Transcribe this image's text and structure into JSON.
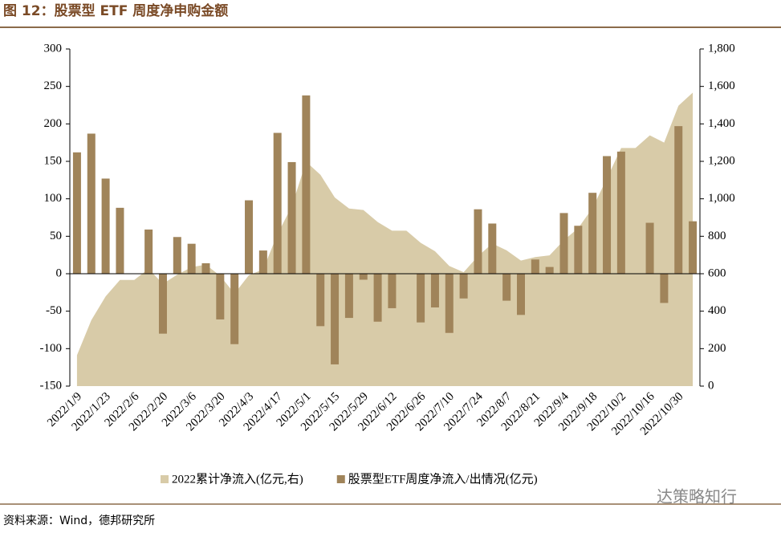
{
  "chart_data": {
    "type": "bar+area",
    "title": "图 12：股票型 ETF 周度净申购金额",
    "source": "资料来源：Wind，德邦研究所",
    "watermark": "达策略知行",
    "categories": [
      "2022/1/9",
      null,
      "2022/1/23",
      null,
      "2022/2/6",
      null,
      "2022/2/20",
      null,
      "2022/3/6",
      null,
      "2022/3/20",
      null,
      "2022/4/3",
      null,
      "2022/4/17",
      null,
      "2022/5/1",
      null,
      "2022/5/15",
      null,
      "2022/5/29",
      null,
      "2022/6/12",
      null,
      "2022/6/26",
      null,
      "2022/7/10",
      null,
      "2022/7/24",
      null,
      "2022/8/7",
      null,
      "2022/8/21",
      null,
      "2022/9/4",
      null,
      "2022/9/18",
      null,
      "2022/10/2",
      null,
      "2022/10/16",
      null,
      "2022/10/30",
      null
    ],
    "series": [
      {
        "name": "2022累计净流入(亿元,右)",
        "type": "area",
        "axis": "y2",
        "color": "#d8cba8",
        "values": [
          165,
          352,
          479,
          567,
          567,
          626,
          546,
          595,
          635,
          649,
          588,
          494,
          592,
          623,
          811,
          960,
          1198,
          1128,
          1007,
          948,
          940,
          876,
          830,
          830,
          765,
          720,
          641,
          608,
          694,
          761,
          725,
          670,
          689,
          698,
          779,
          843,
          951,
          1108,
          1271,
          1271,
          1339,
          1300,
          1497,
          1567
        ]
      },
      {
        "name": "股票型ETF周度净流入/出情况(亿元)",
        "type": "bar",
        "color": "#a0845a",
        "values": [
          162,
          187,
          127,
          88,
          0,
          59,
          -80,
          49,
          40,
          14,
          -61,
          -94,
          98,
          31,
          188,
          149,
          238,
          -70,
          -121,
          -59,
          -8,
          -64,
          -46,
          0,
          -65,
          -45,
          -79,
          -33,
          86,
          67,
          -36,
          -55,
          19,
          9,
          81,
          64,
          108,
          157,
          163,
          0,
          68,
          -39,
          197,
          70
        ]
      }
    ],
    "ylim": [
      -150,
      300
    ],
    "yticks": [
      -150,
      -100,
      -50,
      0,
      50,
      100,
      150,
      200,
      250,
      300
    ],
    "y2lim": [
      0,
      1800
    ],
    "y2ticks": [
      0,
      200,
      400,
      600,
      800,
      {
        "value": 1000,
        "label": "1,000"
      },
      {
        "value": 1200,
        "label": "1,200"
      },
      {
        "value": 1400,
        "label": "1,400"
      },
      {
        "value": 1600,
        "label": "1,600"
      },
      {
        "value": 1800,
        "label": "1,800"
      }
    ]
  }
}
